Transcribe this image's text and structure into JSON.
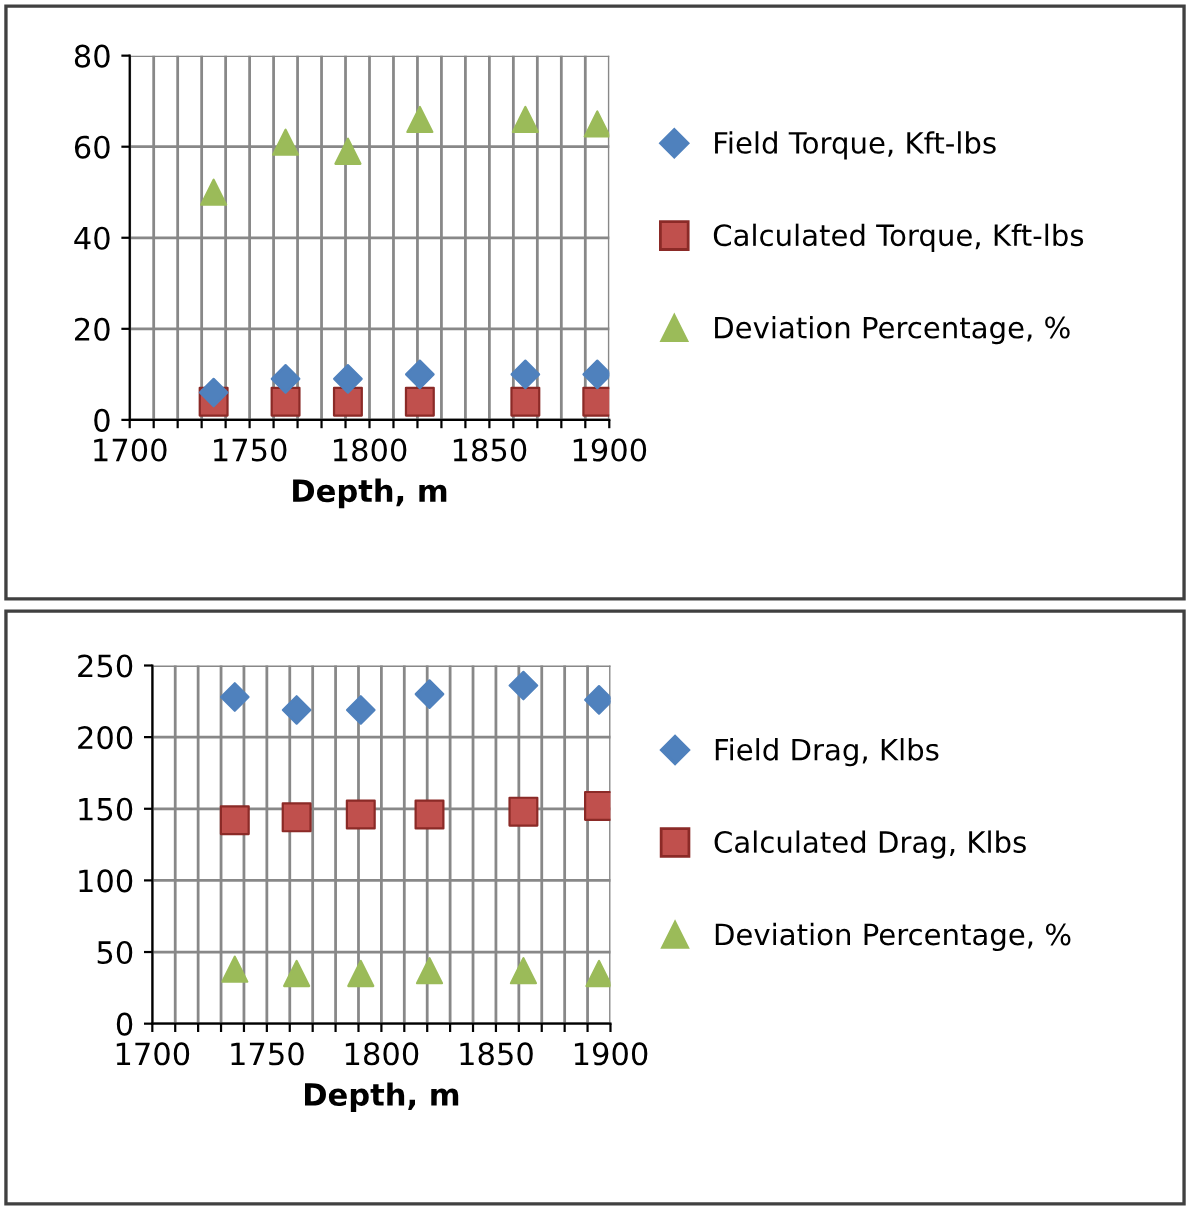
{
  "chart_data": [
    {
      "type": "scatter",
      "xlabel": "Depth, m",
      "xlim": [
        1700,
        1900
      ],
      "ylim": [
        0,
        80
      ],
      "xticks": [
        1700,
        {
          "value": 1710,
          "label": null
        },
        {
          "value": 1720,
          "label": null
        },
        {
          "value": 1730,
          "label": null
        },
        {
          "value": 1740,
          "label": null
        },
        1750,
        {
          "value": 1760,
          "label": null
        },
        {
          "value": 1770,
          "label": null
        },
        {
          "value": 1780,
          "label": null
        },
        {
          "value": 1790,
          "label": null
        },
        1800,
        {
          "value": 1810,
          "label": null
        },
        {
          "value": 1820,
          "label": null
        },
        {
          "value": 1830,
          "label": null
        },
        {
          "value": 1840,
          "label": null
        },
        1850,
        {
          "value": 1860,
          "label": null
        },
        {
          "value": 1870,
          "label": null
        },
        {
          "value": 1880,
          "label": null
        },
        {
          "value": 1890,
          "label": null
        },
        1900
      ],
      "yticks": [
        0,
        20,
        40,
        60,
        80
      ],
      "grid": true,
      "legend": "right",
      "x": [
        1735,
        1765,
        1791,
        1821,
        1865,
        1895
      ],
      "series": [
        {
          "name": "Field Torque, Kft-lbs",
          "color": "#4f81bd",
          "marker": "diamond",
          "values": [
            6,
            9,
            9,
            10,
            10,
            10
          ]
        },
        {
          "name": "Calculated Torque, Kft-lbs",
          "color": "#c0504d",
          "marker": "square",
          "values": [
            4,
            4,
            4,
            4,
            4,
            4
          ]
        },
        {
          "name": "Deviation Percentage, %",
          "color": "#9bbb59",
          "marker": "triangle",
          "values": [
            50,
            61,
            59,
            66,
            66,
            65
          ]
        }
      ]
    },
    {
      "type": "scatter",
      "xlabel": "Depth, m",
      "xlim": [
        1700,
        1900
      ],
      "ylim": [
        0,
        250
      ],
      "xticks": [
        1700,
        {
          "value": 1710,
          "label": null
        },
        {
          "value": 1720,
          "label": null
        },
        {
          "value": 1730,
          "label": null
        },
        {
          "value": 1740,
          "label": null
        },
        1750,
        {
          "value": 1760,
          "label": null
        },
        {
          "value": 1770,
          "label": null
        },
        {
          "value": 1780,
          "label": null
        },
        {
          "value": 1790,
          "label": null
        },
        1800,
        {
          "value": 1810,
          "label": null
        },
        {
          "value": 1820,
          "label": null
        },
        {
          "value": 1830,
          "label": null
        },
        {
          "value": 1840,
          "label": null
        },
        1850,
        {
          "value": 1860,
          "label": null
        },
        {
          "value": 1870,
          "label": null
        },
        {
          "value": 1880,
          "label": null
        },
        {
          "value": 1890,
          "label": null
        },
        1900
      ],
      "yticks": [
        0,
        50,
        100,
        150,
        200,
        250
      ],
      "grid": true,
      "legend": "right",
      "x": [
        1736,
        1763,
        1791,
        1821,
        1862,
        1895
      ],
      "series": [
        {
          "name": "Field Drag, Klbs",
          "color": "#4f81bd",
          "marker": "diamond",
          "values": [
            228,
            219,
            219,
            230,
            236,
            226
          ]
        },
        {
          "name": "Calculated Drag, Klbs",
          "color": "#c0504d",
          "marker": "square",
          "values": [
            142,
            144,
            146,
            146,
            148,
            152
          ]
        },
        {
          "name": "Deviation Percentage, %",
          "color": "#9bbb59",
          "marker": "triangle",
          "values": [
            38,
            35,
            35,
            37,
            37,
            35
          ]
        }
      ]
    }
  ]
}
